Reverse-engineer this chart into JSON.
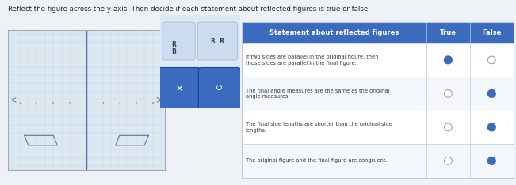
{
  "title": "Reflect the figure across the y-axis. Then decide if each statement about reflected figures is true or false.",
  "table_header": [
    "Statement about reflected figures",
    "True",
    "False"
  ],
  "rows": [
    {
      "text": "If two sides are parallel in the original figure, then\nthose sides are parallel in the final figure.",
      "true_selected": true,
      "false_selected": false
    },
    {
      "text": "The final angle measures are the same as the original\nangle measures.",
      "true_selected": false,
      "false_selected": true
    },
    {
      "text": "The final side lengths are shorter than the original side\nlengths.",
      "true_selected": false,
      "false_selected": true
    },
    {
      "text": "The original figure and the final figure are congruent.",
      "true_selected": false,
      "false_selected": true
    }
  ],
  "bg_color": "#eef2f7",
  "graph_bg": "#dde8f0",
  "graph_border": "#99aabb",
  "table_header_bg": "#3a6bbf",
  "table_header_text": "#ffffff",
  "table_row_bg_even": "#ffffff",
  "table_row_bg_odd": "#f4f8fc",
  "table_border": "#bbccdd",
  "table_text": "#333344",
  "selected_color": "#3a6bbf",
  "unselected_border": "#999999",
  "grid_color": "#c5d5e5",
  "axis_color": "#666666",
  "yaxis_color": "#4466bb",
  "rect_color": "#5577aa",
  "button_color": "#3a6bbf",
  "panel_bg": "#d0ddf0",
  "panel_border": "#99aabb",
  "orig_x": [
    -7.5,
    -4.0,
    -3.5,
    -7.0,
    -7.5
  ],
  "orig_y": [
    -4.3,
    -4.3,
    -5.5,
    -5.5,
    -4.3
  ]
}
